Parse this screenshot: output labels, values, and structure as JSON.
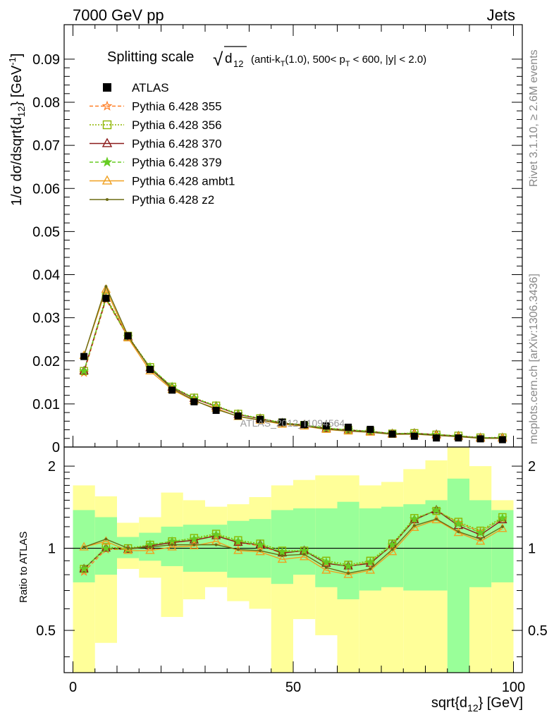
{
  "header": {
    "left": "7000 GeV pp",
    "right": "Jets",
    "side_top": "Rivet 3.1.10, ≥ 2.6M events",
    "side_bottom": "mcplots.cern.ch [arXiv:1306.3436]"
  },
  "plot_title": {
    "main": "Splitting scale",
    "sqrt_symbol": "√",
    "d_sub": "d",
    "sub12": "12",
    "detail_a": "(anti-k",
    "detail_sub_T": "T",
    "detail_b": "(1.0), 500< p",
    "detail_sub_T2": "T",
    "detail_c": "< 600, |y| < 2.0)"
  },
  "watermark": "ATLAS_2012_I1094564",
  "axes": {
    "y_top_label": "1/σ dσ/dsqrt{d",
    "y_top_label_sub": "12",
    "y_top_label_end": "} [GeV",
    "y_top_label_sup": "-1",
    "y_top_label_close": "]",
    "y_bottom_label": "Ratio to ATLAS",
    "x_label": "sqrt{d",
    "x_label_sub": "12",
    "x_label_end": "} [GeV]"
  },
  "legend": [
    {
      "label": "ATLAS",
      "color": "#000000",
      "marker": "square-filled",
      "dash": "none"
    },
    {
      "label": "Pythia 6.428 355",
      "color": "#ff7f27",
      "marker": "star-open",
      "dash": "dash"
    },
    {
      "label": "Pythia 6.428 356",
      "color": "#8db600",
      "marker": "square-open",
      "dash": "dot"
    },
    {
      "label": "Pythia 6.428 370",
      "color": "#8b1a1a",
      "marker": "triangle-open",
      "dash": "solid"
    },
    {
      "label": "Pythia 6.428 379",
      "color": "#66cc22",
      "marker": "star-filled",
      "dash": "dash"
    },
    {
      "label": "Pythia 6.428 ambt1",
      "color": "#f0a020",
      "marker": "triangle-open",
      "dash": "solid"
    },
    {
      "label": "Pythia 6.428 z2",
      "color": "#6b6b14",
      "marker": "dot",
      "dash": "solid"
    }
  ],
  "chart_data": {
    "type": "line",
    "x": [
      2.5,
      7.5,
      12.5,
      17.5,
      22.5,
      27.5,
      32.5,
      37.5,
      42.5,
      47.5,
      52.5,
      57.5,
      62.5,
      67.5,
      72.5,
      77.5,
      82.5,
      87.5,
      92.5,
      97.5
    ],
    "x_edges": [
      0,
      5,
      10,
      15,
      20,
      25,
      30,
      35,
      40,
      45,
      50,
      55,
      60,
      65,
      70,
      75,
      80,
      85,
      90,
      95,
      100
    ],
    "xlim": [
      -2,
      102
    ],
    "top_panel": {
      "ylim": [
        0,
        0.098
      ],
      "yticks": [
        0,
        0.01,
        0.02,
        0.03,
        0.04,
        0.05,
        0.06,
        0.07,
        0.08,
        0.09
      ],
      "ytick_labels": [
        "0",
        "0.01",
        "0.02",
        "0.03",
        "0.04",
        "0.05",
        "0.06",
        "0.07",
        "0.08",
        "0.09"
      ],
      "atlas": [
        0.021,
        0.0345,
        0.0258,
        0.018,
        0.0132,
        0.0105,
        0.0085,
        0.0072,
        0.0064,
        0.0058,
        0.0052,
        0.0049,
        0.0046,
        0.0041,
        0.003,
        0.0025,
        0.0021,
        0.0021,
        0.0019,
        0.0017
      ]
    },
    "bottom_panel": {
      "ylim": [
        0.35,
        2.35
      ],
      "log_scale": true,
      "yticks": [
        0.5,
        1,
        2
      ],
      "ytick_labels": [
        "0.5",
        "1",
        "2"
      ],
      "band_inner": [
        [
          0.75,
          1.38
        ],
        [
          0.8,
          1.3
        ],
        [
          0.92,
          1.1
        ],
        [
          0.9,
          1.14
        ],
        [
          0.86,
          1.2
        ],
        [
          0.82,
          1.22
        ],
        [
          0.82,
          1.22
        ],
        [
          0.78,
          1.26
        ],
        [
          0.78,
          1.28
        ],
        [
          0.74,
          1.38
        ],
        [
          0.8,
          1.4
        ],
        [
          0.72,
          1.4
        ],
        [
          0.65,
          1.48
        ],
        [
          0.7,
          1.4
        ],
        [
          0.72,
          1.42
        ],
        [
          0.7,
          1.45
        ],
        [
          0.7,
          1.5
        ],
        [
          0.35,
          1.8
        ],
        [
          0.72,
          1.5
        ],
        [
          0.75,
          1.38
        ]
      ],
      "band_outer": [
        [
          0.35,
          1.7
        ],
        [
          0.45,
          1.55
        ],
        [
          0.84,
          1.24
        ],
        [
          0.78,
          1.3
        ],
        [
          0.56,
          1.6
        ],
        [
          0.65,
          1.5
        ],
        [
          0.72,
          1.42
        ],
        [
          0.64,
          1.45
        ],
        [
          0.6,
          1.54
        ],
        [
          0.35,
          1.7
        ],
        [
          0.55,
          1.78
        ],
        [
          0.48,
          1.85
        ],
        [
          0.35,
          1.85
        ],
        [
          0.35,
          1.7
        ],
        [
          0.35,
          1.75
        ],
        [
          0.35,
          1.95
        ],
        [
          0.35,
          2.1
        ],
        [
          0.35,
          2.35
        ],
        [
          0.35,
          2.0
        ],
        [
          0.35,
          1.5
        ]
      ]
    },
    "series": [
      {
        "name": "Pythia 6.428 355",
        "ratio": [
          0.82,
          0.99,
          0.99,
          1.02,
          1.05,
          1.07,
          1.12,
          1.05,
          1.02,
          0.96,
          0.98,
          0.88,
          0.86,
          0.89,
          1.02,
          1.28,
          1.38,
          1.24,
          1.15,
          1.28
        ]
      },
      {
        "name": "Pythia 6.428 356",
        "ratio": [
          0.84,
          1.01,
          1.0,
          1.03,
          1.06,
          1.09,
          1.13,
          1.07,
          1.04,
          0.98,
          0.98,
          0.9,
          0.87,
          0.9,
          1.04,
          1.29,
          1.37,
          1.25,
          1.16,
          1.3
        ]
      },
      {
        "name": "Pythia 6.428 370",
        "ratio": [
          0.84,
          1.0,
          0.99,
          1.02,
          1.05,
          1.07,
          1.11,
          1.05,
          1.03,
          0.96,
          0.98,
          0.88,
          0.86,
          0.88,
          1.03,
          1.27,
          1.38,
          1.21,
          1.12,
          1.27
        ]
      },
      {
        "name": "Pythia 6.428 379",
        "ratio": [
          0.84,
          1.0,
          0.99,
          1.03,
          1.06,
          1.08,
          1.12,
          1.06,
          1.03,
          0.97,
          0.98,
          0.89,
          0.86,
          0.89,
          1.03,
          1.28,
          1.38,
          1.23,
          1.14,
          1.29
        ]
      },
      {
        "name": "Pythia 6.428 ambt1",
        "ratio": [
          1.01,
          1.06,
          0.98,
          0.98,
          1.01,
          1.02,
          1.06,
          0.98,
          0.97,
          0.91,
          0.93,
          0.83,
          0.8,
          0.83,
          0.97,
          1.19,
          1.27,
          1.14,
          1.06,
          1.18
        ]
      },
      {
        "name": "Pythia 6.428 z2",
        "ratio": [
          1.01,
          1.08,
          1.0,
          1.01,
          1.03,
          1.03,
          1.03,
          0.99,
          0.98,
          0.94,
          0.95,
          0.85,
          0.81,
          0.84,
          0.99,
          1.21,
          1.28,
          1.15,
          1.08,
          1.2
        ]
      }
    ]
  }
}
